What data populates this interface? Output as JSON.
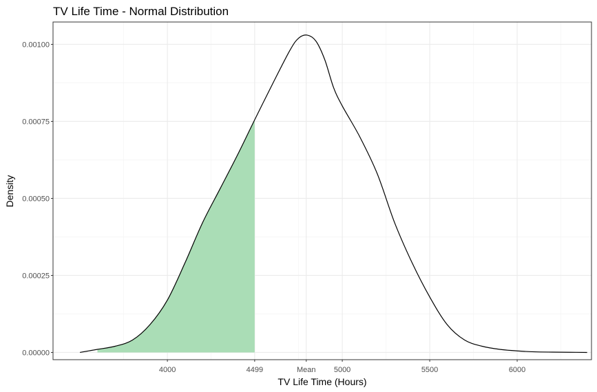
{
  "chart_data": {
    "type": "area",
    "title": "TV Life Time - Normal Distribution",
    "xlabel": "TV Life Time (Hours)",
    "ylabel": "Density",
    "xlim": [
      3346,
      6425
    ],
    "ylim": [
      -2.35e-05,
      0.0010725
    ],
    "x_ticks": [
      {
        "value": 4000,
        "label": "4000"
      },
      {
        "value": 4499,
        "label": "4499"
      },
      {
        "value": 4794,
        "label": "Mean"
      },
      {
        "value": 5000,
        "label": "5000"
      },
      {
        "value": 5500,
        "label": "5500"
      },
      {
        "value": 6000,
        "label": "6000"
      }
    ],
    "x_minor_grid": [
      3750,
      4250,
      4750,
      5250,
      5750,
      6250
    ],
    "y_ticks": [
      {
        "value": 0.0,
        "label": "0.00000"
      },
      {
        "value": 0.00025,
        "label": "0.00025"
      },
      {
        "value": 0.0005,
        "label": "0.00050"
      },
      {
        "value": 0.00075,
        "label": "0.00075"
      },
      {
        "value": 0.001,
        "label": "0.00100"
      }
    ],
    "y_minor_grid": [
      0.000125,
      0.000375,
      0.000625,
      0.000875
    ],
    "density_curve": {
      "x": [
        3500,
        3600,
        3700,
        3800,
        3900,
        4000,
        4100,
        4200,
        4300,
        4400,
        4499,
        4600,
        4700,
        4750,
        4800,
        4850,
        4900,
        4950,
        5000,
        5100,
        5200,
        5300,
        5400,
        5500,
        5600,
        5700,
        5800,
        5900,
        6000,
        6100,
        6200,
        6300,
        6400
      ],
      "y": [
        0.0,
        1e-05,
        2e-05,
        4e-05,
        9e-05,
        0.00017,
        0.00029,
        0.00042,
        0.00053,
        0.00064,
        0.000755,
        0.00087,
        0.00098,
        0.00102,
        0.00103,
        0.00101,
        0.00095,
        0.00086,
        0.0008,
        0.0007,
        0.00058,
        0.00042,
        0.00029,
        0.00018,
        9e-05,
        4e-05,
        2e-05,
        1e-05,
        5e-06,
        2e-06,
        1e-06,
        5e-07,
        0.0
      ]
    },
    "shaded_region": {
      "from": 3600,
      "to": 4499,
      "color": "#aaddb6"
    },
    "line_color": "#000000",
    "grid": true
  }
}
